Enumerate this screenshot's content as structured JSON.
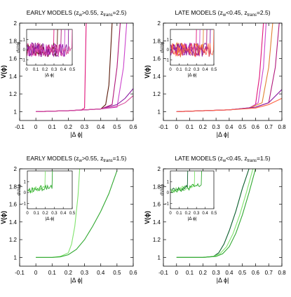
{
  "figure": {
    "panels": [
      {
        "title_pre": "EARLY MODELS (z",
        "title_sub1": "w",
        "title_mid": ">0.55, z",
        "title_sub2": "trans",
        "title_post": "=2.5)",
        "ylabel": "V(ϕ)",
        "xlabel": "|Δ ϕ|",
        "xlim": [
          -0.1,
          0.6
        ],
        "ylim": [
          0.9,
          2.0
        ],
        "xticks": [
          "-0.1",
          "0",
          "0.1",
          "0.2",
          "0.3",
          "0.4",
          "0.5",
          "0.6"
        ],
        "yticks": [
          "1",
          "1.2",
          "1.4",
          "1.6",
          "1.8",
          "2"
        ],
        "inset": {
          "ylabel": "dV/dϕ",
          "xlabel": "|Δ ϕ|",
          "xticks": [
            "0",
            "0.1",
            "0.2",
            "0.3",
            "0.4",
            "0.5"
          ],
          "yticks": [
            "-1",
            "0",
            "1"
          ]
        }
      },
      {
        "title_pre": "LATE MODELS (z",
        "title_sub1": "w",
        "title_mid": "<0.45, z",
        "title_sub2": "trans",
        "title_post": "=2.5)",
        "ylabel": "V(ϕ)",
        "xlabel": "|Δ ϕ|",
        "xlim": [
          -0.1,
          0.8
        ],
        "ylim": [
          0.9,
          2.0
        ],
        "xticks": [
          "-0.1",
          "0",
          "0.1",
          "0.2",
          "0.3",
          "0.4",
          "0.5",
          "0.6",
          "0.7",
          "0.8"
        ],
        "yticks": [
          "1",
          "1.2",
          "1.4",
          "1.6",
          "1.8",
          "2"
        ],
        "inset": {
          "ylabel": "dV/dϕ",
          "xlabel": "|Δ ϕ|",
          "xticks": [
            "0",
            "0.1",
            "0.2",
            "0.3",
            "0.4",
            "0.5"
          ],
          "yticks": [
            "-1",
            "0",
            "1"
          ]
        }
      },
      {
        "title_pre": "EARLY MODELS (z",
        "title_sub1": "w",
        "title_mid": ">0.55, z",
        "title_sub2": "trans",
        "title_post": "=1.5)",
        "ylabel": "V(ϕ)",
        "xlabel": "|Δ ϕ|",
        "xlim": [
          -0.1,
          0.6
        ],
        "ylim": [
          0.9,
          2.0
        ],
        "xticks": [
          "-0.1",
          "0",
          "0.1",
          "0.2",
          "0.3",
          "0.4",
          "0.5",
          "0.6"
        ],
        "yticks": [
          "1",
          "1.2",
          "1.4",
          "1.6",
          "1.8",
          "2"
        ],
        "inset": {
          "ylabel": "dV/dϕ",
          "xlabel": "|Δ ϕ|",
          "xticks": [
            "0",
            "0.1",
            "0.2",
            "0.3",
            "0.4",
            "0.5"
          ],
          "yticks": [
            "-1",
            "0",
            "1"
          ]
        }
      },
      {
        "title_pre": "LATE MODELS (z",
        "title_sub1": "w",
        "title_mid": "<0.45, z",
        "title_sub2": "trans",
        "title_post": "=1.5)",
        "ylabel": "V(ϕ)",
        "xlabel": "|Δ ϕ|",
        "xlim": [
          -0.1,
          0.8
        ],
        "ylim": [
          0.9,
          2.0
        ],
        "xticks": [
          "-0.1",
          "0",
          "0.1",
          "0.2",
          "0.3",
          "0.4",
          "0.5",
          "0.6",
          "0.7",
          "0.8"
        ],
        "yticks": [
          "1",
          "1.2",
          "1.4",
          "1.6",
          "1.8",
          "2"
        ],
        "inset": {
          "ylabel": "dV/dϕ",
          "xlabel": "|Δ ϕ|",
          "xticks": [
            "0",
            "0.1",
            "0.2",
            "0.3",
            "0.4",
            "0.5"
          ],
          "yticks": [
            "-1",
            "0",
            "1"
          ]
        }
      }
    ]
  },
  "chart_data": [
    {
      "type": "line",
      "title": "EARLY MODELS (zw>0.55, ztrans=2.5)",
      "xlabel": "|Δ ϕ|",
      "ylabel": "V(ϕ)",
      "xlim": [
        -0.1,
        0.6
      ],
      "ylim": [
        0.9,
        2.0
      ],
      "grid": false,
      "series": [
        {
          "color": "#e0147a",
          "x": [
            0,
            0.1,
            0.2,
            0.28,
            0.3,
            0.305,
            0.31
          ],
          "y": [
            1.0,
            1.005,
            1.01,
            1.02,
            1.04,
            1.5,
            2.0
          ]
        },
        {
          "color": "#5a1a0a",
          "x": [
            0,
            0.1,
            0.2,
            0.3,
            0.4,
            0.43,
            0.45,
            0.47
          ],
          "y": [
            1.0,
            1.005,
            1.01,
            1.02,
            1.03,
            1.08,
            1.3,
            2.0
          ]
        },
        {
          "color": "#b0177a",
          "x": [
            0,
            0.1,
            0.2,
            0.3,
            0.4,
            0.47,
            0.5,
            0.52
          ],
          "y": [
            1.0,
            1.005,
            1.01,
            1.02,
            1.03,
            1.08,
            1.5,
            2.0
          ]
        },
        {
          "color": "#cc44cc",
          "x": [
            0,
            0.1,
            0.2,
            0.3,
            0.4,
            0.5,
            0.54,
            0.56
          ],
          "y": [
            1.0,
            1.005,
            1.01,
            1.02,
            1.03,
            1.05,
            1.5,
            2.0
          ]
        },
        {
          "color": "#8a1aa0",
          "x": [
            0,
            0.1,
            0.2,
            0.3,
            0.4,
            0.5,
            0.55,
            0.6
          ],
          "y": [
            1.0,
            1.005,
            1.01,
            1.02,
            1.03,
            1.08,
            1.15,
            1.26
          ]
        },
        {
          "color": "#d94f9e",
          "x": [
            0,
            0.1,
            0.2,
            0.3,
            0.4,
            0.5,
            0.55,
            0.6
          ],
          "y": [
            1.0,
            1.005,
            1.01,
            1.02,
            1.03,
            1.06,
            1.1,
            1.18
          ]
        }
      ]
    },
    {
      "type": "line",
      "title": "LATE MODELS (zw<0.45, ztrans=2.5)",
      "xlabel": "|Δ ϕ|",
      "ylabel": "V(ϕ)",
      "xlim": [
        -0.1,
        0.8
      ],
      "ylim": [
        0.9,
        2.0
      ],
      "grid": false,
      "series": [
        {
          "color": "#e0147a",
          "x": [
            0,
            0.2,
            0.4,
            0.55,
            0.6,
            0.63,
            0.66
          ],
          "y": [
            1.0,
            1.01,
            1.02,
            1.04,
            1.08,
            1.4,
            2.0
          ]
        },
        {
          "color": "#cc44cc",
          "x": [
            0,
            0.2,
            0.4,
            0.55,
            0.62,
            0.66,
            0.68
          ],
          "y": [
            1.0,
            1.01,
            1.02,
            1.04,
            1.1,
            1.5,
            2.0
          ]
        },
        {
          "color": "#e08030",
          "x": [
            0,
            0.2,
            0.4,
            0.55,
            0.65,
            0.7,
            0.73
          ],
          "y": [
            1.0,
            1.01,
            1.02,
            1.04,
            1.1,
            1.5,
            2.0
          ]
        },
        {
          "color": "#b0177a",
          "x": [
            0,
            0.2,
            0.4,
            0.6,
            0.7,
            0.75,
            0.78
          ],
          "y": [
            1.0,
            1.01,
            1.02,
            1.05,
            1.1,
            1.5,
            2.0
          ]
        },
        {
          "color": "#8a1aa0",
          "x": [
            0,
            0.2,
            0.4,
            0.6,
            0.7,
            0.8
          ],
          "y": [
            1.0,
            1.01,
            1.02,
            1.05,
            1.1,
            1.25
          ]
        },
        {
          "color": "#ff6a4a",
          "x": [
            0,
            0.2,
            0.4,
            0.6,
            0.7,
            0.8
          ],
          "y": [
            1.0,
            1.01,
            1.02,
            1.04,
            1.08,
            1.15
          ]
        }
      ]
    },
    {
      "type": "line",
      "title": "EARLY MODELS (zw>0.55, ztrans=1.5)",
      "xlabel": "|Δ ϕ|",
      "ylabel": "V(ϕ)",
      "xlim": [
        -0.1,
        0.6
      ],
      "ylim": [
        0.9,
        2.0
      ],
      "grid": false,
      "series": [
        {
          "color": "#7fe36b",
          "x": [
            0,
            0.1,
            0.15,
            0.2,
            0.22,
            0.24,
            0.26,
            0.27
          ],
          "y": [
            1.0,
            1.0,
            1.01,
            1.05,
            1.15,
            1.35,
            1.7,
            2.0
          ]
        },
        {
          "color": "#2fa82f",
          "x": [
            0,
            0.1,
            0.15,
            0.2,
            0.25,
            0.3,
            0.35,
            0.4,
            0.45,
            0.5
          ],
          "y": [
            1.0,
            1.0,
            1.005,
            1.03,
            1.09,
            1.2,
            1.35,
            1.52,
            1.72,
            1.98
          ]
        }
      ]
    },
    {
      "type": "line",
      "title": "LATE MODELS (zw<0.45, ztrans=1.5)",
      "xlabel": "|Δ ϕ|",
      "ylabel": "V(ϕ)",
      "xlim": [
        -0.1,
        0.8
      ],
      "ylim": [
        0.9,
        2.0
      ],
      "grid": false,
      "series": [
        {
          "color": "#0b5f2d",
          "x": [
            0,
            0.1,
            0.2,
            0.28,
            0.32,
            0.36,
            0.4,
            0.45,
            0.5,
            0.55
          ],
          "y": [
            1.0,
            1.0,
            1.0,
            1.01,
            1.05,
            1.15,
            1.3,
            1.52,
            1.78,
            2.0
          ]
        },
        {
          "color": "#7fe36b",
          "x": [
            0,
            0.1,
            0.2,
            0.28,
            0.33,
            0.38,
            0.43,
            0.48,
            0.53,
            0.58
          ],
          "y": [
            1.0,
            1.0,
            1.0,
            1.01,
            1.04,
            1.12,
            1.27,
            1.48,
            1.73,
            2.0
          ]
        },
        {
          "color": "#2fa82f",
          "x": [
            0,
            0.1,
            0.2,
            0.3,
            0.35,
            0.4,
            0.45,
            0.5,
            0.55,
            0.6
          ],
          "y": [
            1.0,
            1.0,
            1.0,
            1.01,
            1.04,
            1.12,
            1.27,
            1.48,
            1.73,
            2.0
          ]
        }
      ]
    }
  ]
}
